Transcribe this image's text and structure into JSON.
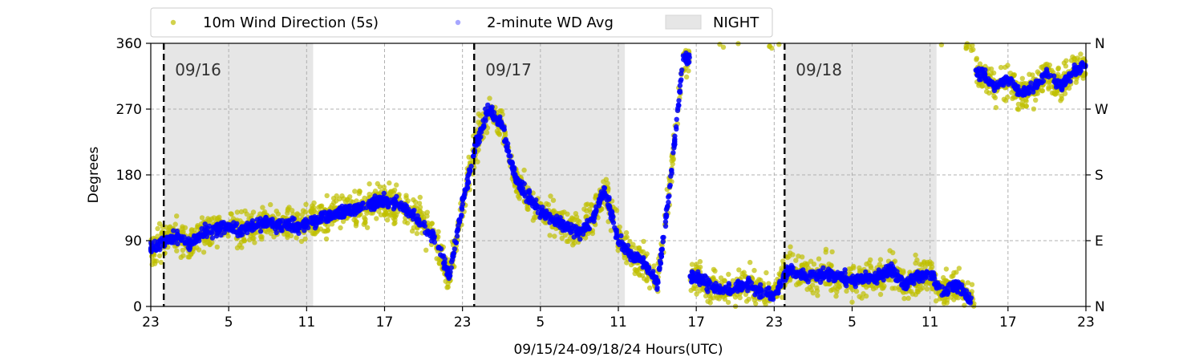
{
  "chart_data": {
    "type": "scatter",
    "xlabel": "09/15/24-09/18/24  Hours(UTC)",
    "ylabel": "Degrees",
    "ylim": [
      0,
      360
    ],
    "xlim_hours": [
      0,
      72
    ],
    "x_ticks": [
      {
        "h": 0,
        "label": "23"
      },
      {
        "h": 6,
        "label": "5"
      },
      {
        "h": 12,
        "label": "11"
      },
      {
        "h": 18,
        "label": "17"
      },
      {
        "h": 24,
        "label": "23"
      },
      {
        "h": 30,
        "label": "5"
      },
      {
        "h": 36,
        "label": "11"
      },
      {
        "h": 42,
        "label": "17"
      },
      {
        "h": 48,
        "label": "23"
      },
      {
        "h": 54,
        "label": "5"
      },
      {
        "h": 60,
        "label": "11"
      },
      {
        "h": 66,
        "label": "17"
      },
      {
        "h": 72,
        "label": "23"
      }
    ],
    "y_ticks": [
      0,
      90,
      180,
      270,
      360
    ],
    "right_ticks": [
      {
        "v": 0,
        "label": "N"
      },
      {
        "v": 90,
        "label": "E"
      },
      {
        "v": 180,
        "label": "S"
      },
      {
        "v": 270,
        "label": "W"
      },
      {
        "v": 360,
        "label": "N"
      }
    ],
    "grid": true,
    "legend": {
      "placement": "top",
      "items": [
        {
          "label": "10m Wind Direction (5s)",
          "color": "#bfbf00"
        },
        {
          "label": "2-minute WD Avg",
          "color": "#0000ff"
        },
        {
          "label": "NIGHT",
          "color": "#e6e6e6"
        }
      ]
    },
    "night_bands_hours": [
      [
        1.0,
        12.5
      ],
      [
        24.9,
        36.5
      ],
      [
        48.8,
        60.5
      ]
    ],
    "date_markers": [
      {
        "h": 1.0,
        "label": "09/16"
      },
      {
        "h": 24.9,
        "label": "09/17"
      },
      {
        "h": 48.8,
        "label": "09/18"
      }
    ],
    "series": [
      {
        "name": "2-minute WD Avg",
        "color": "#0000ff",
        "x_hours": [
          0,
          1,
          2,
          3,
          4,
          5,
          6,
          7,
          8,
          9,
          10,
          11,
          12,
          13,
          14,
          15,
          16,
          17,
          18,
          19,
          20,
          21,
          22,
          23,
          24,
          25,
          26,
          27,
          28,
          29,
          30,
          31,
          32,
          33,
          34,
          35,
          36,
          37,
          38,
          39,
          40,
          41,
          42,
          43,
          44,
          45,
          46,
          47,
          48,
          49,
          50,
          51,
          52,
          53,
          54,
          55,
          56,
          57,
          58,
          59,
          60,
          61,
          62,
          63,
          64,
          65,
          66,
          67,
          68,
          69,
          70,
          71,
          72
        ],
        "values": [
          80,
          90,
          95,
          85,
          100,
          105,
          110,
          105,
          110,
          115,
          110,
          112,
          110,
          120,
          125,
          130,
          135,
          140,
          145,
          140,
          130,
          110,
          90,
          40,
          140,
          220,
          270,
          250,
          180,
          150,
          130,
          120,
          110,
          100,
          120,
          160,
          90,
          70,
          60,
          30,
          170,
          340,
          40,
          30,
          20,
          25,
          30,
          20,
          15,
          50,
          45,
          40,
          45,
          40,
          35,
          40,
          40,
          50,
          30,
          40,
          45,
          20,
          30,
          10,
          320,
          300,
          310,
          290,
          300,
          320,
          300,
          320,
          330
        ]
      },
      {
        "name": "10m Wind Direction (5s)",
        "color": "#bfbf00",
        "x_hours": [
          0,
          1,
          2,
          3,
          4,
          5,
          6,
          7,
          8,
          9,
          10,
          11,
          12,
          13,
          14,
          15,
          16,
          17,
          18,
          19,
          20,
          21,
          22,
          23,
          24,
          25,
          26,
          27,
          28,
          29,
          30,
          31,
          32,
          33,
          34,
          35,
          36,
          37,
          38,
          39,
          40,
          41,
          42,
          43,
          44,
          45,
          46,
          47,
          48,
          49,
          50,
          51,
          52,
          53,
          54,
          55,
          56,
          57,
          58,
          59,
          60,
          61,
          62,
          63,
          64,
          65,
          66,
          67,
          68,
          69,
          70,
          71,
          72
        ],
        "values": [
          80,
          90,
          95,
          85,
          100,
          105,
          110,
          105,
          110,
          115,
          110,
          112,
          110,
          120,
          125,
          130,
          135,
          140,
          145,
          140,
          130,
          110,
          90,
          40,
          140,
          220,
          270,
          250,
          180,
          150,
          130,
          120,
          110,
          100,
          120,
          160,
          90,
          70,
          60,
          30,
          170,
          340,
          40,
          30,
          20,
          25,
          30,
          20,
          15,
          50,
          45,
          40,
          45,
          40,
          35,
          40,
          40,
          50,
          30,
          40,
          45,
          20,
          30,
          10,
          320,
          300,
          310,
          290,
          300,
          320,
          300,
          320,
          330
        ]
      }
    ]
  }
}
